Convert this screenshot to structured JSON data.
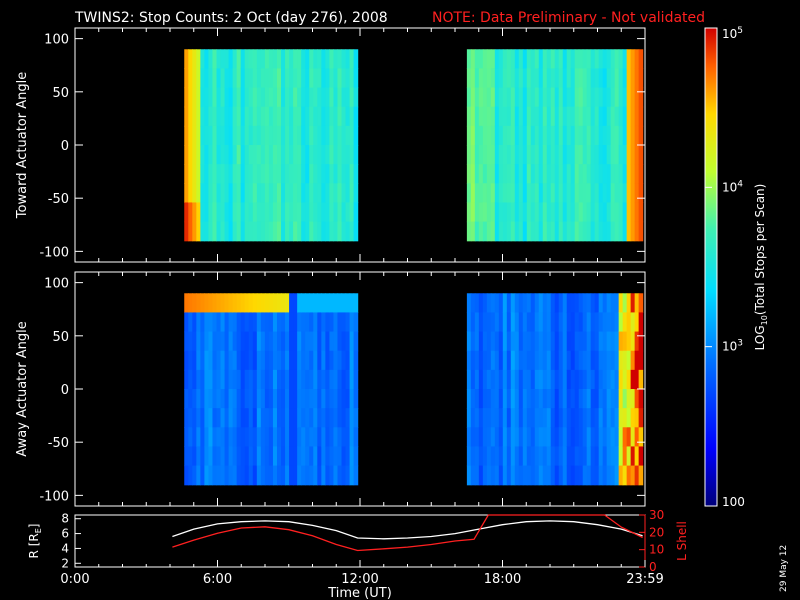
{
  "header": {
    "title": "TWINS2: Stop Counts:  2 Oct (day 276), 2008",
    "note": "NOTE: Data Preliminary - Not validated",
    "note_color": "#ff2020"
  },
  "stamp": "29 May 12",
  "colorbar": {
    "label_main": "LOG",
    "label_sub": "10",
    "label_rest": "(Total Stops per Scan)",
    "ticks": [
      {
        "value": 100000,
        "base": "10",
        "exp": "5"
      },
      {
        "value": 10000,
        "base": "10",
        "exp": "4"
      },
      {
        "value": 1000,
        "base": "10",
        "exp": "3"
      },
      {
        "value": 100,
        "base": "100",
        "exp": ""
      }
    ],
    "range": [
      100,
      100000
    ],
    "scale": "log"
  },
  "chart_data": [
    {
      "type": "heatmap",
      "name": "toward",
      "ylabel": "Toward Actuator Angle",
      "y_ticks": [
        "100",
        "50",
        "0",
        "-50",
        "-100"
      ],
      "ylim": [
        -110,
        110
      ],
      "xlim": [
        0,
        24
      ],
      "data_y_range": [
        -90,
        90
      ],
      "segments": [
        {
          "start_hour": 4.6,
          "end_hour": 11.9
        },
        {
          "start_hour": 16.5,
          "end_hour": 23.9
        }
      ],
      "typical_log_counts": 3.6,
      "features": {
        "left_edge_high": 4.6,
        "right_edge_high": 4.8
      }
    },
    {
      "type": "heatmap",
      "name": "away",
      "ylabel": "Away Actuator Angle",
      "y_ticks": [
        "100",
        "50",
        "0",
        "-50",
        "-100"
      ],
      "ylim": [
        -110,
        110
      ],
      "xlim": [
        0,
        24
      ],
      "data_y_range": [
        -90,
        90
      ],
      "segments": [
        {
          "start_hour": 4.6,
          "end_hour": 11.9
        },
        {
          "start_hour": 16.5,
          "end_hour": 23.9
        }
      ],
      "typical_log_counts": 2.9,
      "features": {
        "top_band_high": 4.7,
        "right_edge_high": 4.9
      }
    },
    {
      "type": "line",
      "name": "orbit",
      "ylabel_left": "R [R",
      "ylabel_left_sub": "E",
      "ylabel_left_end": "]",
      "ylabel_right": "L Shell",
      "left_ticks": [
        "8",
        "6",
        "4",
        "2"
      ],
      "right_ticks": [
        "30",
        "20",
        "10",
        "0"
      ],
      "left_ylim": [
        1.5,
        8.5
      ],
      "right_ylim": [
        0,
        30
      ],
      "xlabel": "Time (UT)",
      "x_ticks": [
        "0:00",
        "6:00",
        "12:00",
        "18:00",
        "23:59"
      ],
      "xlim": [
        0,
        24
      ],
      "series": [
        {
          "color": "#ffffff",
          "axis": "left",
          "x": [
            4.1,
            5,
            6,
            7,
            8,
            9,
            10,
            11,
            11.9,
            13,
            14,
            15,
            16,
            17,
            18,
            19,
            20,
            21,
            22,
            23,
            23.9
          ],
          "y": [
            5.6,
            6.6,
            7.3,
            7.6,
            7.7,
            7.6,
            7.1,
            6.4,
            5.4,
            5.3,
            5.4,
            5.6,
            6.0,
            6.6,
            7.2,
            7.6,
            7.7,
            7.6,
            7.2,
            6.6,
            5.7
          ]
        },
        {
          "color": "#ff2020",
          "axis": "right",
          "x": [
            4.1,
            5,
            6,
            7,
            8,
            9,
            10,
            11,
            11.9,
            13,
            14,
            15,
            16,
            16.8,
            17.4,
            22.3,
            23,
            23.9
          ],
          "y": [
            11.5,
            15.5,
            19.5,
            22.5,
            23.2,
            21.5,
            18,
            13,
            9.5,
            10.5,
            11.5,
            13,
            15,
            16,
            30,
            30,
            23,
            17
          ]
        }
      ]
    }
  ]
}
